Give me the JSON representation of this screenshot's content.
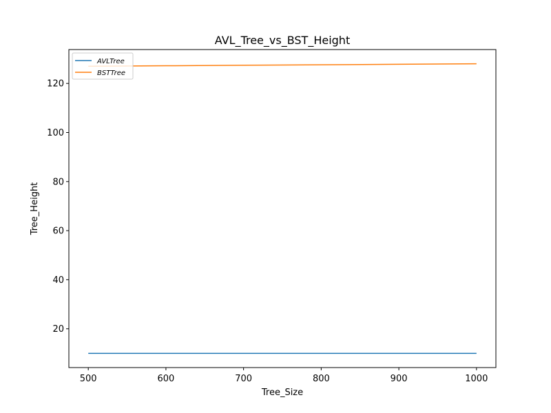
{
  "chart_data": {
    "type": "line",
    "title": "AVL_Tree_vs_BST_Height",
    "xlabel": "Tree_Size",
    "ylabel": "Tree_Height",
    "xlim": [
      475,
      1025
    ],
    "ylim": [
      4.2,
      133.8
    ],
    "xticks": [
      "500",
      "600",
      "700",
      "800",
      "900",
      "1000"
    ],
    "yticks": [
      "20",
      "40",
      "60",
      "80",
      "100",
      "120"
    ],
    "grid": false,
    "legend_position": "upper-left",
    "series": [
      {
        "name": "AVLTree",
        "color": "#1f77b4",
        "x": [
          500,
          600,
          700,
          800,
          900,
          1000
        ],
        "y": [
          10,
          10,
          10,
          10,
          10,
          10
        ]
      },
      {
        "name": "BSTTree",
        "color": "#ff7f0e",
        "x": [
          500,
          600,
          700,
          800,
          900,
          1000
        ],
        "y": [
          127,
          127.2,
          127.4,
          127.6,
          127.8,
          128
        ]
      }
    ]
  }
}
